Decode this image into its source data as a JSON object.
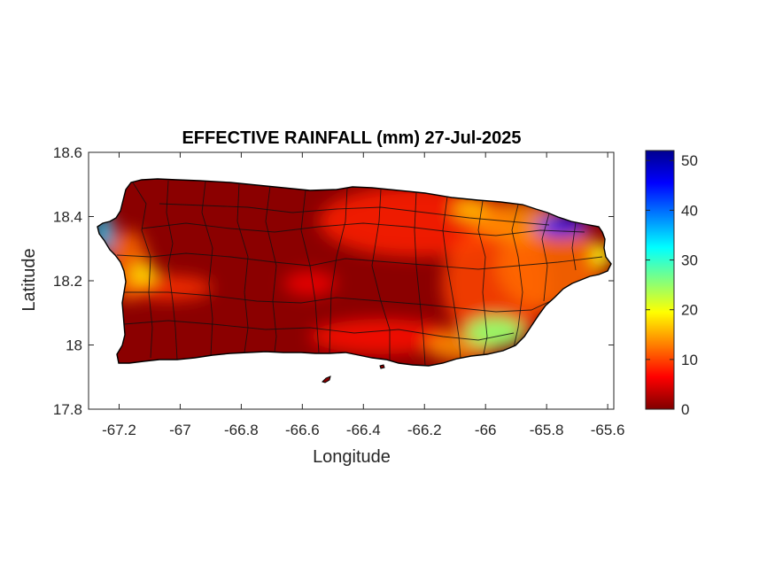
{
  "figure": {
    "title": "EFFECTIVE RAINFALL (mm) 27-Jul-2025",
    "xlabel": "Longitude",
    "ylabel": "Latitude"
  },
  "map": {
    "xlim": [
      -67.3,
      -65.58
    ],
    "ylim": [
      17.8,
      18.6
    ],
    "xticks": [
      -67.2,
      -67,
      -66.8,
      -66.6,
      -66.4,
      -66.2,
      -66,
      -65.8,
      -65.6
    ],
    "xtick_labels": [
      "-67.2",
      "-67",
      "-66.8",
      "-66.6",
      "-66.4",
      "-66.2",
      "-66",
      "-65.8",
      "-65.6"
    ],
    "yticks": [
      18.6,
      18.4,
      18.2,
      18
    ],
    "ytick_labels": [
      "18.6",
      "18.4",
      "18.2",
      "18"
    ],
    "extra_ytick": 17.8,
    "extra_ytick_label": "17.8",
    "colorbar": {
      "colormap": "jet",
      "range": [
        0,
        52
      ],
      "ticks": [
        0,
        10,
        20,
        30,
        40,
        50
      ],
      "tick_labels": [
        "0",
        "10",
        "20",
        "30",
        "40",
        "50"
      ]
    }
  },
  "chart_data": {
    "type": "heatmap",
    "title": "EFFECTIVE RAINFALL (mm) 27-Jul-2025",
    "xlabel": "Longitude",
    "ylabel": "Latitude",
    "xlim": [
      -67.3,
      -65.58
    ],
    "ylim": [
      17.8,
      18.6
    ],
    "colorbar_range": [
      0,
      52
    ],
    "grid": false,
    "hotspots": [
      {
        "lon": -65.75,
        "lat": 18.37,
        "value": 45
      },
      {
        "lon": -67.25,
        "lat": 18.35,
        "value": 35
      },
      {
        "lon": -65.97,
        "lat": 18.04,
        "value": 25
      },
      {
        "lon": -65.62,
        "lat": 18.28,
        "value": 20
      },
      {
        "lon": -66.05,
        "lat": 18.42,
        "value": 16
      },
      {
        "lon": -67.12,
        "lat": 18.22,
        "value": 18
      }
    ]
  }
}
